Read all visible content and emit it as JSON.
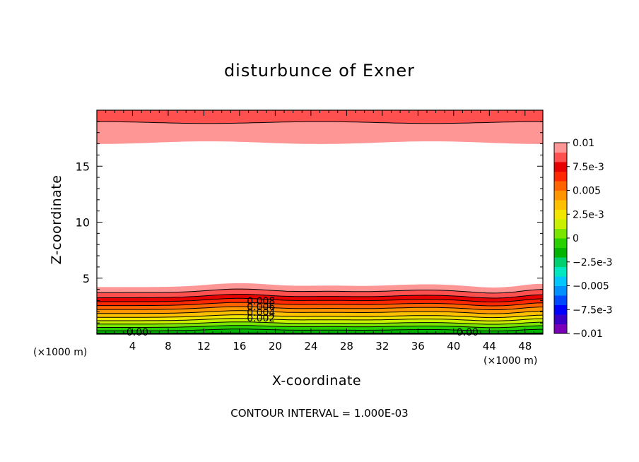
{
  "chart_data": {
    "type": "heatmap",
    "title": "disturbunce of Exner",
    "xlabel": "X-coordinate",
    "ylabel": "Z-coordinate",
    "x_unit": "(×1000 m)",
    "xlim": [
      0,
      50
    ],
    "ylim": [
      0,
      20
    ],
    "x_ticks": [
      "4",
      "8",
      "12",
      "16",
      "20",
      "24",
      "28",
      "32",
      "36",
      "40",
      "44",
      "48"
    ],
    "y_ticks": [
      "5",
      "10",
      "15"
    ],
    "contour_interval_text": "CONTOUR INTERVAL = 1.000E-03",
    "contour_labels": [
      "0.008",
      "0.006",
      "0.004",
      "0.002",
      "0.00",
      "0.00"
    ],
    "colorbar": {
      "range": [
        -0.01,
        0.01
      ],
      "tick_labels": [
        "0.01",
        "7.5e-3",
        "0.005",
        "2.5e-3",
        "0",
        "−2.5e-3",
        "−0.005",
        "−7.5e-3",
        "−0.01"
      ],
      "colors": [
        "#7a00b8",
        "#3a00c8",
        "#0000ff",
        "#0048ff",
        "#0090ff",
        "#00c8ff",
        "#00e8c0",
        "#00d070",
        "#00b400",
        "#28d000",
        "#7ae600",
        "#c8f000",
        "#f0e600",
        "#ffc000",
        "#ff9600",
        "#ff6400",
        "#ff2800",
        "#e60000",
        "#ff5050",
        "#ff9696"
      ]
    },
    "top_band": {
      "description_levels": [
        "0.01",
        "0.009",
        "0.008"
      ]
    },
    "bottom_field": {
      "surface_value": "0.00",
      "top_value": "0.009"
    }
  }
}
